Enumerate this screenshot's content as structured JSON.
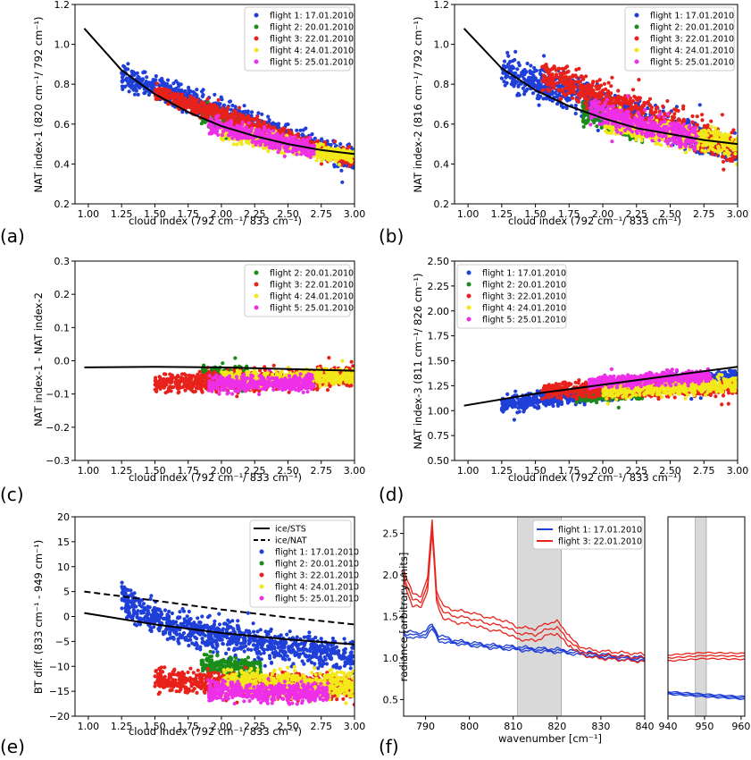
{
  "figure": {
    "panel_letters": [
      "(a)",
      "(b)",
      "(c)",
      "(d)",
      "(e)",
      "(f)"
    ]
  },
  "colors": {
    "flight1": "#1f3fd8",
    "flight2": "#1a8c1a",
    "flight3": "#e8221b",
    "flight4": "#f2e81a",
    "flight5": "#ee2fe8",
    "model": "#000000",
    "shade": "#d9d9d9"
  },
  "legends": {
    "a": [
      "flight 1: 17.01.2010",
      "flight 2: 20.01.2010",
      "flight 3: 22.01.2010",
      "flight 4: 24.01.2010",
      "flight 5: 25.01.2010"
    ],
    "b": [
      "flight 1: 17.01.2010",
      "flight 2: 20.01.2010",
      "flight 3: 22.01.2010",
      "flight 4: 24.01.2010",
      "flight 5: 25.01.2010"
    ],
    "c": [
      "flight 2: 20.01.2010",
      "flight 3: 22.01.2010",
      "flight 4: 24.01.2010",
      "flight 5: 25.01.2010"
    ],
    "d": [
      "flight 1: 17.01.2010",
      "flight 2: 20.01.2010",
      "flight 3: 22.01.2010",
      "flight 4: 24.01.2010",
      "flight 5: 25.01.2010"
    ],
    "e": [
      "ice/STS",
      "ice/NAT",
      "flight 1: 17.01.2010",
      "flight 2: 20.01.2010",
      "flight 3: 22.01.2010",
      "flight 4: 24.01.2010",
      "flight 5: 25.01.2010"
    ],
    "f": [
      "flight 1: 17.01.2010",
      "flight 3: 22.01.2010"
    ]
  },
  "chart_data": [
    {
      "panel": "a",
      "type": "scatter",
      "xlabel": "cloud index (792 cm⁻¹/ 833 cm⁻¹)",
      "ylabel": "NAT index-1 (820 cm⁻¹/ 792 cm⁻¹)",
      "xlim": [
        0.9,
        3.0
      ],
      "ylim": [
        0.2,
        1.2
      ],
      "xticks": [
        "1.00",
        "1.25",
        "1.50",
        "1.75",
        "2.00",
        "2.25",
        "2.50",
        "2.75",
        "3.00"
      ],
      "yticks": [
        "0.2",
        "0.4",
        "0.6",
        "0.8",
        "1.0",
        "1.2"
      ],
      "model_curve": {
        "x": [
          0.97,
          1.25,
          1.5,
          1.75,
          2.0,
          2.25,
          2.5,
          2.75,
          3.0
        ],
        "y": [
          1.08,
          0.87,
          0.75,
          0.66,
          0.59,
          0.54,
          0.5,
          0.47,
          0.45
        ]
      },
      "series": [
        {
          "name": "flight 1: 17.01.2010",
          "x_range": [
            1.25,
            3.0
          ],
          "y_start": 0.84,
          "y_end": 0.42,
          "spread": 0.03
        },
        {
          "name": "flight 2: 20.01.2010",
          "x_range": [
            1.85,
            2.2
          ],
          "y_start": 0.64,
          "y_end": 0.57,
          "spread": 0.02
        },
        {
          "name": "flight 3: 22.01.2010",
          "x_range": [
            1.5,
            3.0
          ],
          "y_start": 0.76,
          "y_end": 0.42,
          "spread": 0.02
        },
        {
          "name": "flight 4: 24.01.2010",
          "x_range": [
            2.0,
            3.0
          ],
          "y_start": 0.56,
          "y_end": 0.43,
          "spread": 0.02
        },
        {
          "name": "flight 5: 25.01.2010",
          "x_range": [
            1.9,
            2.7
          ],
          "y_start": 0.6,
          "y_end": 0.47,
          "spread": 0.02
        }
      ]
    },
    {
      "panel": "b",
      "type": "scatter",
      "xlabel": "cloud index (792 cm⁻¹/ 833 cm⁻¹)",
      "ylabel": "NAT index-2 (816 cm⁻¹/ 792 cm⁻¹)",
      "xlim": [
        0.9,
        3.0
      ],
      "ylim": [
        0.2,
        1.2
      ],
      "xticks": [
        "1.00",
        "1.25",
        "1.50",
        "1.75",
        "2.00",
        "2.25",
        "2.50",
        "2.75",
        "3.00"
      ],
      "yticks": [
        "0.2",
        "0.4",
        "0.6",
        "0.8",
        "1.0",
        "1.2"
      ],
      "model_curve": {
        "x": [
          0.97,
          1.25,
          1.5,
          1.75,
          2.0,
          2.25,
          2.5,
          2.75,
          3.0
        ],
        "y": [
          1.08,
          0.88,
          0.77,
          0.69,
          0.63,
          0.58,
          0.55,
          0.52,
          0.5
        ]
      },
      "series": [
        {
          "name": "flight 1: 17.01.2010",
          "x_range": [
            1.25,
            3.0
          ],
          "y_start": 0.87,
          "y_end": 0.46,
          "spread": 0.04
        },
        {
          "name": "flight 2: 20.01.2010",
          "x_range": [
            1.85,
            2.3
          ],
          "y_start": 0.67,
          "y_end": 0.56,
          "spread": 0.03
        },
        {
          "name": "flight 3: 22.01.2010",
          "x_range": [
            1.55,
            3.0
          ],
          "y_start": 0.85,
          "y_end": 0.47,
          "spread": 0.04
        },
        {
          "name": "flight 4: 24.01.2010",
          "x_range": [
            2.0,
            3.0
          ],
          "y_start": 0.62,
          "y_end": 0.49,
          "spread": 0.03
        },
        {
          "name": "flight 5: 25.01.2010",
          "x_range": [
            1.9,
            2.7
          ],
          "y_start": 0.67,
          "y_end": 0.53,
          "spread": 0.03
        }
      ]
    },
    {
      "panel": "c",
      "type": "scatter",
      "xlabel": "cloud index (792 cm⁻¹/ 833 cm⁻¹)",
      "ylabel": "NAT index-1 - NAT index-2",
      "xlim": [
        0.9,
        3.0
      ],
      "ylim": [
        -0.3,
        0.3
      ],
      "xticks": [
        "1.00",
        "1.25",
        "1.50",
        "1.75",
        "2.00",
        "2.25",
        "2.50",
        "2.75",
        "3.00"
      ],
      "yticks": [
        "−0.3",
        "−0.2",
        "−0.1",
        "0.0",
        "0.1",
        "0.2",
        "0.3"
      ],
      "model_curve": {
        "x": [
          0.97,
          1.5,
          2.0,
          2.5,
          3.0
        ],
        "y": [
          -0.02,
          -0.018,
          -0.02,
          -0.025,
          -0.03
        ]
      },
      "series": [
        {
          "name": "flight 2: 20.01.2010",
          "x_range": [
            1.85,
            2.2
          ],
          "y_start": -0.04,
          "y_end": -0.04,
          "spread": 0.012
        },
        {
          "name": "flight 3: 22.01.2010",
          "x_range": [
            1.5,
            3.0
          ],
          "y_start": -0.07,
          "y_end": -0.045,
          "spread": 0.015
        },
        {
          "name": "flight 4: 24.01.2010",
          "x_range": [
            2.0,
            3.0
          ],
          "y_start": -0.055,
          "y_end": -0.05,
          "spread": 0.012
        },
        {
          "name": "flight 5: 25.01.2010",
          "x_range": [
            1.9,
            2.7
          ],
          "y_start": -0.07,
          "y_end": -0.065,
          "spread": 0.012
        }
      ]
    },
    {
      "panel": "d",
      "type": "scatter",
      "xlabel": "cloud index (792 cm⁻¹/ 833 cm⁻¹)",
      "ylabel": "NAT index-3 (811 cm⁻¹/ 826 cm⁻¹)",
      "xlim": [
        0.9,
        3.0
      ],
      "ylim": [
        0.5,
        2.5
      ],
      "xticks": [
        "1.00",
        "1.25",
        "1.50",
        "1.75",
        "2.00",
        "2.25",
        "2.50",
        "2.75",
        "3.00"
      ],
      "yticks": [
        "0.50",
        "0.75",
        "1.00",
        "1.25",
        "1.50",
        "1.75",
        "2.00",
        "2.25",
        "2.50"
      ],
      "model_curve": {
        "x": [
          0.97,
          1.5,
          2.0,
          2.5,
          3.0
        ],
        "y": [
          1.05,
          1.17,
          1.26,
          1.35,
          1.44
        ]
      },
      "series": [
        {
          "name": "flight 1: 17.01.2010",
          "x_range": [
            1.25,
            3.0
          ],
          "y_start": 1.06,
          "y_end": 1.35,
          "spread": 0.04
        },
        {
          "name": "flight 2: 20.01.2010",
          "x_range": [
            1.8,
            2.3
          ],
          "y_start": 1.15,
          "y_end": 1.17,
          "spread": 0.03
        },
        {
          "name": "flight 3: 22.01.2010",
          "x_range": [
            1.55,
            3.0
          ],
          "y_start": 1.2,
          "y_end": 1.24,
          "spread": 0.04
        },
        {
          "name": "flight 4: 24.01.2010",
          "x_range": [
            2.0,
            3.0
          ],
          "y_start": 1.2,
          "y_end": 1.27,
          "spread": 0.04
        },
        {
          "name": "flight 5: 25.01.2010",
          "x_range": [
            1.9,
            2.8
          ],
          "y_start": 1.28,
          "y_end": 1.35,
          "spread": 0.03
        }
      ]
    },
    {
      "panel": "e",
      "type": "scatter",
      "xlabel": "cloud index (792 cm⁻¹/ 833 cm⁻¹)",
      "ylabel": "BT diff. (833 cm⁻¹ - 949 cm⁻¹)",
      "xlim": [
        0.9,
        3.0
      ],
      "ylim": [
        -20,
        20
      ],
      "xticks": [
        "1.00",
        "1.25",
        "1.50",
        "1.75",
        "2.00",
        "2.25",
        "2.50",
        "2.75",
        "3.00"
      ],
      "yticks": [
        "−20",
        "−15",
        "−10",
        "−5",
        "0",
        "5",
        "10",
        "15",
        "20"
      ],
      "ice_sts": {
        "x": [
          0.97,
          1.5,
          2.0,
          2.5,
          3.0
        ],
        "y": [
          0.7,
          -1.6,
          -3.3,
          -4.6,
          -5.6
        ]
      },
      "ice_nat": {
        "x": [
          0.97,
          1.5,
          2.0,
          2.5,
          3.0
        ],
        "y": [
          5.0,
          3.2,
          1.4,
          -0.2,
          -1.6
        ]
      },
      "series": [
        {
          "name": "flight 1: 17.01.2010",
          "x_range": [
            1.25,
            3.0
          ],
          "y_start": 4.5,
          "y_end": -8.3,
          "spread": 1.6
        },
        {
          "name": "flight 2: 20.01.2010",
          "x_range": [
            1.85,
            2.3
          ],
          "y_start": -9.0,
          "y_end": -10.5,
          "spread": 1.0
        },
        {
          "name": "flight 3: 22.01.2010",
          "x_range": [
            1.5,
            3.0
          ],
          "y_start": -12.5,
          "y_end": -14.0,
          "spread": 1.2
        },
        {
          "name": "flight 4: 24.01.2010",
          "x_range": [
            2.0,
            3.0
          ],
          "y_start": -13.0,
          "y_end": -13.5,
          "spread": 1.3
        },
        {
          "name": "flight 5: 25.01.2010",
          "x_range": [
            1.9,
            2.8
          ],
          "y_start": -14.5,
          "y_end": -15.5,
          "spread": 1.0
        }
      ]
    },
    {
      "panel": "f",
      "type": "line",
      "xlabel": "wavenumber [cm⁻¹]",
      "ylabel": "radiance [arbitrary units]",
      "ylim": [
        0.3,
        2.7
      ],
      "yticks": [
        "0.5",
        "1.0",
        "1.5",
        "2.0",
        "2.5"
      ],
      "left_xlim": [
        785,
        840
      ],
      "left_xticks": [
        "790",
        "800",
        "810",
        "820",
        "830",
        "840"
      ],
      "right_xlim": [
        940,
        961
      ],
      "right_xticks": [
        "940",
        "950",
        "960"
      ],
      "shaded_left": [
        811,
        821
      ],
      "shaded_right": [
        947.5,
        950.5
      ],
      "series": [
        {
          "name": "flight 1: 17.01.2010",
          "count": 3,
          "left": {
            "x": [
              785,
              788,
              790,
              791.5,
              793,
              796,
              800,
              805,
              810,
              815,
              820,
              825,
              830,
              835,
              840
            ],
            "y": [
              1.3,
              1.27,
              1.29,
              1.38,
              1.24,
              1.2,
              1.17,
              1.14,
              1.12,
              1.1,
              1.09,
              1.06,
              1.03,
              1.0,
              0.99
            ]
          },
          "right": {
            "x": [
              940,
              950,
              961
            ],
            "y": [
              0.58,
              0.55,
              0.52
            ]
          }
        },
        {
          "name": "flight 3: 22.01.2010",
          "count": 3,
          "left": {
            "x": [
              785,
              787,
              789,
              790.5,
              791.5,
              792.5,
              794,
              797,
              800,
              804,
              808,
              811,
              815,
              818,
              820,
              822,
              825,
              828,
              830,
              835,
              840
            ],
            "y": [
              2.0,
              1.7,
              1.68,
              1.9,
              2.6,
              1.75,
              1.55,
              1.5,
              1.48,
              1.42,
              1.38,
              1.3,
              1.28,
              1.35,
              1.37,
              1.25,
              1.1,
              1.05,
              1.04,
              1.02,
              1.0
            ]
          },
          "right": {
            "x": [
              940,
              950,
              961
            ],
            "y": [
              1.0,
              1.03,
              1.02
            ]
          }
        }
      ]
    }
  ]
}
